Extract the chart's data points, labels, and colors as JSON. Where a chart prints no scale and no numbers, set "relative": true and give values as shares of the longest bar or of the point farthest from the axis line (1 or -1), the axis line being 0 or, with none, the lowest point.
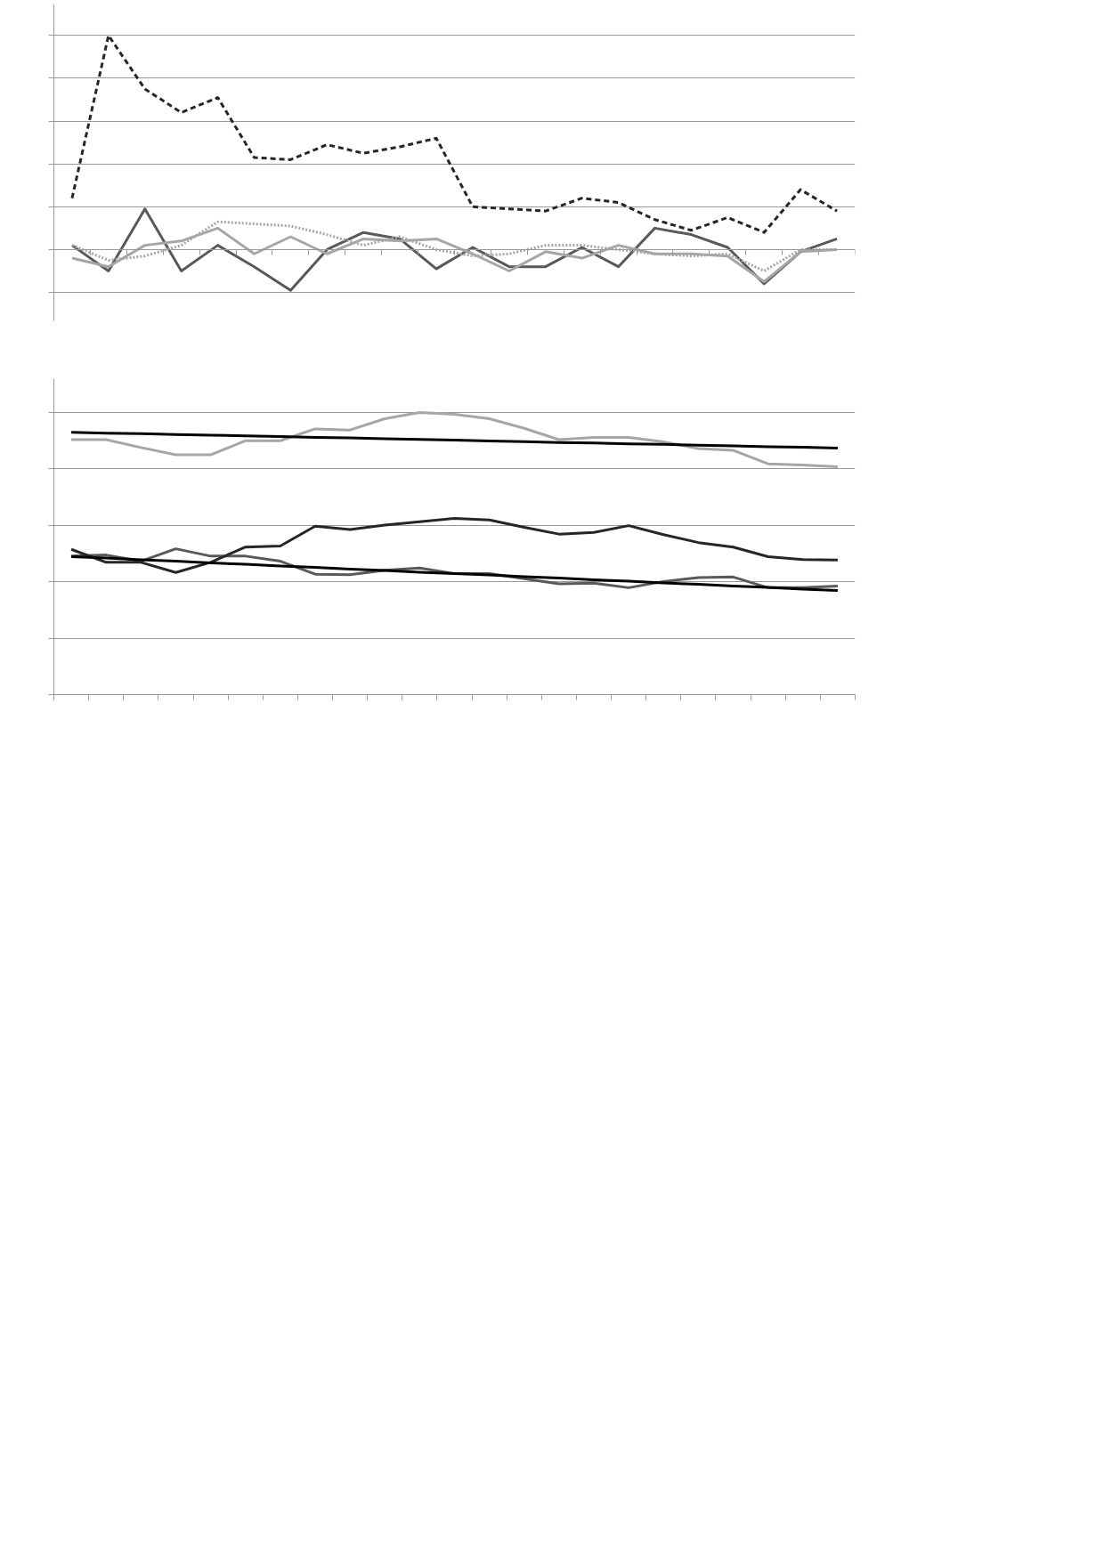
{
  "chart_data": [
    {
      "type": "line",
      "relative": true,
      "grid": "y",
      "categories": [
        null,
        null,
        null,
        null,
        null,
        null,
        null,
        null,
        null,
        null,
        null,
        null,
        null,
        null,
        null,
        null,
        null,
        null,
        null,
        null,
        null,
        null
      ],
      "series": [
        {
          "color": "#595959",
          "line_style": "solid",
          "values": [
            0.02,
            -0.1,
            0.19,
            -0.1,
            0.02,
            -0.08,
            -0.19,
            0,
            0.08,
            0.05,
            -0.09,
            0.01,
            -0.08,
            -0.08,
            0.01,
            -0.08,
            0.1,
            0.07,
            0.01,
            -0.16,
            -0.01,
            0.05
          ]
        },
        {
          "color": "#a6a6a6",
          "line_style": "solid",
          "values": [
            -0.04,
            -0.08,
            0.02,
            0.04,
            0.1,
            -0.02,
            0.06,
            -0.02,
            0.05,
            0.04,
            0.05,
            -0.02,
            -0.1,
            -0.01,
            -0.04,
            0.02,
            -0.02,
            -0.02,
            -0.03,
            -0.15,
            -0.01,
            0
          ]
        },
        {
          "color": "#a6a6a6",
          "line_style": "dotted",
          "values": [
            0.02,
            -0.05,
            -0.03,
            0.02,
            0.13,
            0.12,
            0.11,
            0.07,
            0.02,
            0.06,
            0,
            -0.03,
            -0.02,
            0.02,
            0.02,
            0,
            -0.02,
            -0.03,
            -0.02,
            -0.1,
            0,
            0
          ]
        },
        {
          "color": "#262626",
          "line_style": "dashed",
          "values": [
            0.24,
            1,
            0.75,
            0.64,
            0.71,
            0.43,
            0.42,
            0.49,
            0.45,
            0.48,
            0.52,
            0.2,
            0.19,
            0.18,
            0.24,
            0.22,
            0.14,
            0.09,
            0.15,
            0.08,
            0.28,
            0.18
          ]
        }
      ]
    },
    {
      "type": "line",
      "relative": true,
      "grid": "y",
      "categories": [
        null,
        null,
        null,
        null,
        null,
        null,
        null,
        null,
        null,
        null,
        null,
        null,
        null,
        null,
        null,
        null,
        null,
        null,
        null,
        null,
        null,
        null,
        null
      ],
      "series": [
        {
          "color": "#595959",
          "values": [
            0.491,
            0.495,
            0.473,
            0.517,
            0.491,
            0.491,
            0.473,
            0.427,
            0.425,
            0.441,
            0.449,
            0.429,
            0.429,
            0.411,
            0.393,
            0.395,
            0.379,
            0.401,
            0.415,
            0.417,
            0.379,
            0.379,
            0.385
          ]
        },
        {
          "color": "#262626",
          "values": [
            0.515,
            0.469,
            0.469,
            0.433,
            0.469,
            0.523,
            0.527,
            0.597,
            0.585,
            0.601,
            0.613,
            0.625,
            0.619,
            0.593,
            0.569,
            0.575,
            0.599,
            0.567,
            0.539,
            0.523,
            0.489,
            0.479,
            0.477
          ]
        },
        {
          "color": "#a6a6a6",
          "values": [
            0.904,
            0.904,
            0.876,
            0.85,
            0.85,
            0.9,
            0.9,
            0.942,
            0.938,
            0.978,
            1,
            0.994,
            0.978,
            0.944,
            0.904,
            0.912,
            0.912,
            0.896,
            0.872,
            0.866,
            0.818,
            0.814,
            0.808
          ]
        },
        {
          "color": "#000000",
          "values": [
            0.489,
            0.484,
            0.478,
            0.473,
            0.467,
            0.462,
            0.456,
            0.451,
            0.445,
            0.44,
            0.434,
            0.429,
            0.424,
            0.418,
            0.413,
            0.407,
            0.402,
            0.396,
            0.391,
            0.385,
            0.38,
            0.374,
            0.369
          ]
        },
        {
          "color": "#000000",
          "values": [
            0.93,
            0.927,
            0.925,
            0.922,
            0.92,
            0.917,
            0.915,
            0.912,
            0.91,
            0.907,
            0.905,
            0.902,
            0.899,
            0.897,
            0.894,
            0.892,
            0.889,
            0.887,
            0.884,
            0.882,
            0.879,
            0.877,
            0.874
          ]
        }
      ]
    }
  ]
}
